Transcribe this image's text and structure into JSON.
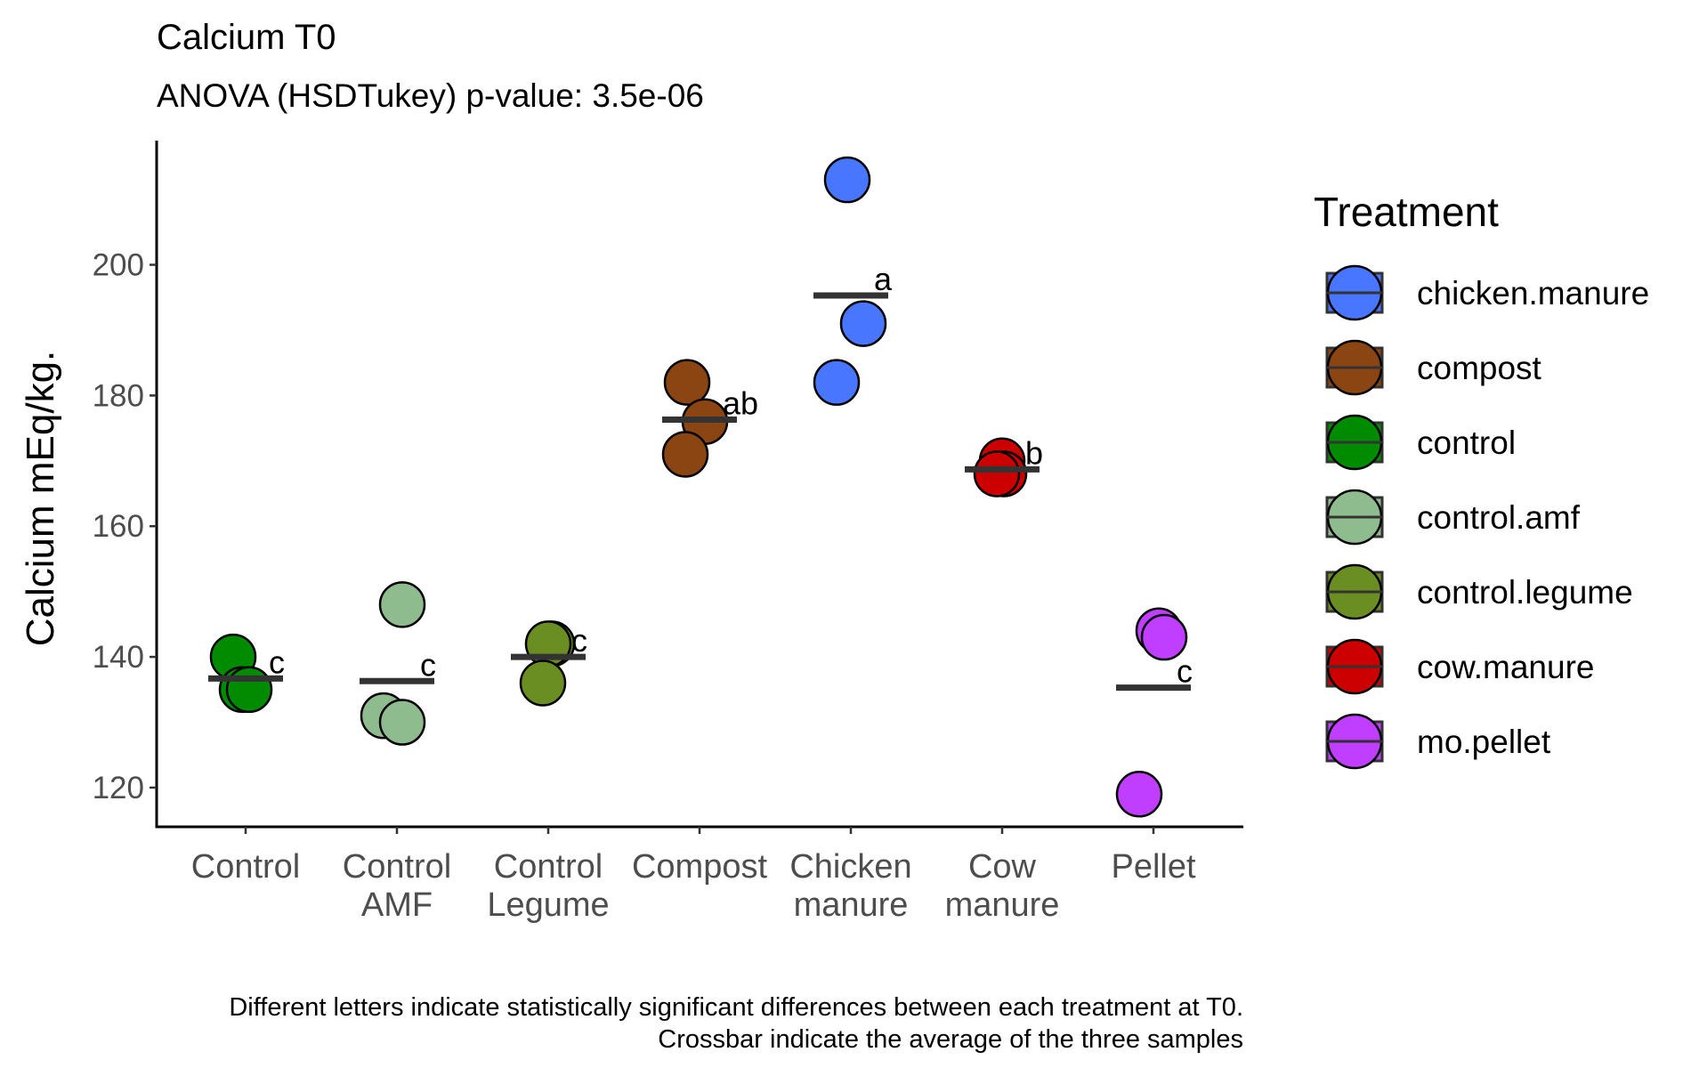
{
  "chart_data": {
    "type": "scatter",
    "title": "Calcium T0",
    "subtitle": "ANOVA (HSDTukey) p-value: 3.5e-06",
    "xlabel": "",
    "ylabel": "Calcium mEq/kg.",
    "ylim": [
      114,
      219
    ],
    "yticks": [
      120,
      140,
      160,
      180,
      200
    ],
    "grid": false,
    "categories": [
      [
        "Control"
      ],
      [
        "Control",
        "AMF"
      ],
      [
        "Control",
        "Legume"
      ],
      [
        "Compost"
      ],
      [
        "Chicken",
        "manure"
      ],
      [
        "Cow",
        "manure"
      ],
      [
        "Pellet"
      ]
    ],
    "series": [
      {
        "name": "control",
        "category_index": 0,
        "color": "#008b00",
        "points": [
          140,
          135,
          135
        ],
        "mean": 136.7,
        "letter": "c"
      },
      {
        "name": "control.amf",
        "category_index": 1,
        "color": "#8fbc8f",
        "points": [
          148,
          131,
          130
        ],
        "mean": 136.3,
        "letter": "c"
      },
      {
        "name": "control.legume",
        "category_index": 2,
        "color": "#6b8e23",
        "points": [
          142,
          142,
          136
        ],
        "mean": 140,
        "letter": "c"
      },
      {
        "name": "compost",
        "category_index": 3,
        "color": "#8b4513",
        "points": [
          182,
          176,
          171
        ],
        "mean": 176.3,
        "letter": "ab"
      },
      {
        "name": "chicken.manure",
        "category_index": 4,
        "color": "#4876ff",
        "points": [
          213,
          191,
          182
        ],
        "mean": 195.3,
        "letter": "a"
      },
      {
        "name": "cow.manure",
        "category_index": 5,
        "color": "#cd0000",
        "points": [
          170,
          168,
          168
        ],
        "mean": 168.7,
        "letter": "b"
      },
      {
        "name": "mo.pellet",
        "category_index": 6,
        "color": "#bf3eff",
        "points": [
          144,
          143,
          119
        ],
        "mean": 135.3,
        "letter": "c"
      }
    ],
    "legend": {
      "title": "Treatment",
      "placement": "right",
      "items": [
        "chicken.manure",
        "compost",
        "control",
        "control.amf",
        "control.legume",
        "cow.manure",
        "mo.pellet"
      ]
    },
    "caption": [
      "Different letters indicate statistically significant differences between each treatment at T0.",
      "Crossbar indicate the average of the three samples"
    ]
  }
}
